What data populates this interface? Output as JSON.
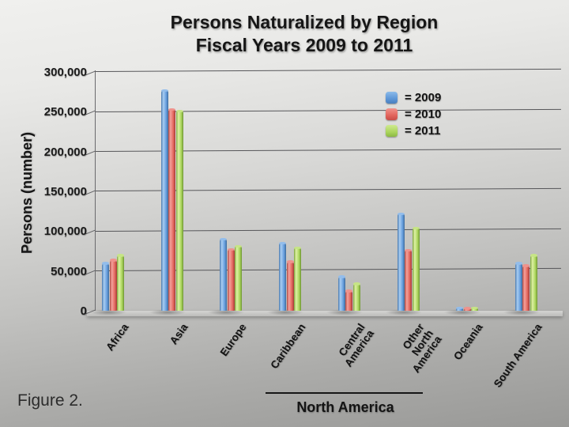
{
  "figure": {
    "caption": "Figure 2."
  },
  "chart_data": {
    "type": "bar",
    "title": "Persons Naturalized by Region Fiscal Years 2009 to 2011",
    "title_lines": [
      "Persons Naturalized by Region",
      "Fiscal Years 2009 to 2011"
    ],
    "ylabel": "Persons (number)",
    "xlabel": "",
    "ylim": [
      0,
      300000
    ],
    "ytick_step": 50000,
    "ytick_labels": [
      "0",
      "50,000",
      "100,000",
      "150,000",
      "200,000",
      "250,000",
      "300,000"
    ],
    "grid": true,
    "legend_position": "upper right inside plot",
    "categories": [
      "Africa",
      "Asia",
      "Europe",
      "Caribbean",
      "Central America",
      "Other North America",
      "Oceania",
      "South America"
    ],
    "category_label_lines": [
      [
        "Africa"
      ],
      [
        "Asia"
      ],
      [
        "Europe"
      ],
      [
        "Caribbean"
      ],
      [
        "Central",
        "America"
      ],
      [
        "Other",
        "North",
        "America"
      ],
      [
        "Oceania"
      ],
      [
        "South America"
      ]
    ],
    "group_annotation": {
      "label": "North America",
      "from": "Caribbean",
      "to": "Other North America"
    },
    "series": [
      {
        "name": "= 2009",
        "color": "#5d96d6",
        "values": [
          60000,
          277000,
          90000,
          85000,
          43000,
          122000,
          3500,
          60000
        ]
      },
      {
        "name": "= 2010",
        "color": "#e2645c",
        "values": [
          64000,
          253000,
          77000,
          62000,
          25000,
          76000,
          3000,
          57000
        ]
      },
      {
        "name": "= 2011",
        "color": "#abd55c",
        "values": [
          70000,
          251000,
          81000,
          79000,
          34000,
          104000,
          3500,
          70000
        ]
      }
    ]
  }
}
